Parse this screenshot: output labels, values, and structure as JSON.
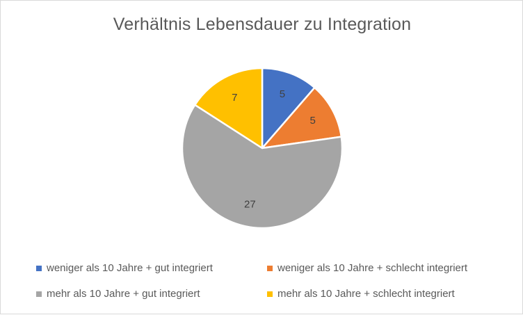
{
  "chart_data": {
    "type": "pie",
    "title": "Verhältnis Lebensdauer  zu Integration",
    "categories": [
      "weniger als 10 Jahre + gut integriert",
      "weniger als 10 Jahre + schlecht integriert",
      "mehr als 10 Jahre + gut integriert",
      "mehr als 10 Jahre + schlecht integriert"
    ],
    "values": [
      5,
      5,
      27,
      7
    ],
    "data_labels": [
      "5",
      "5",
      "27",
      "7"
    ],
    "colors": [
      "#4472C4",
      "#ED7D31",
      "#A5A5A5",
      "#FFC000"
    ],
    "legend_position": "bottom"
  }
}
